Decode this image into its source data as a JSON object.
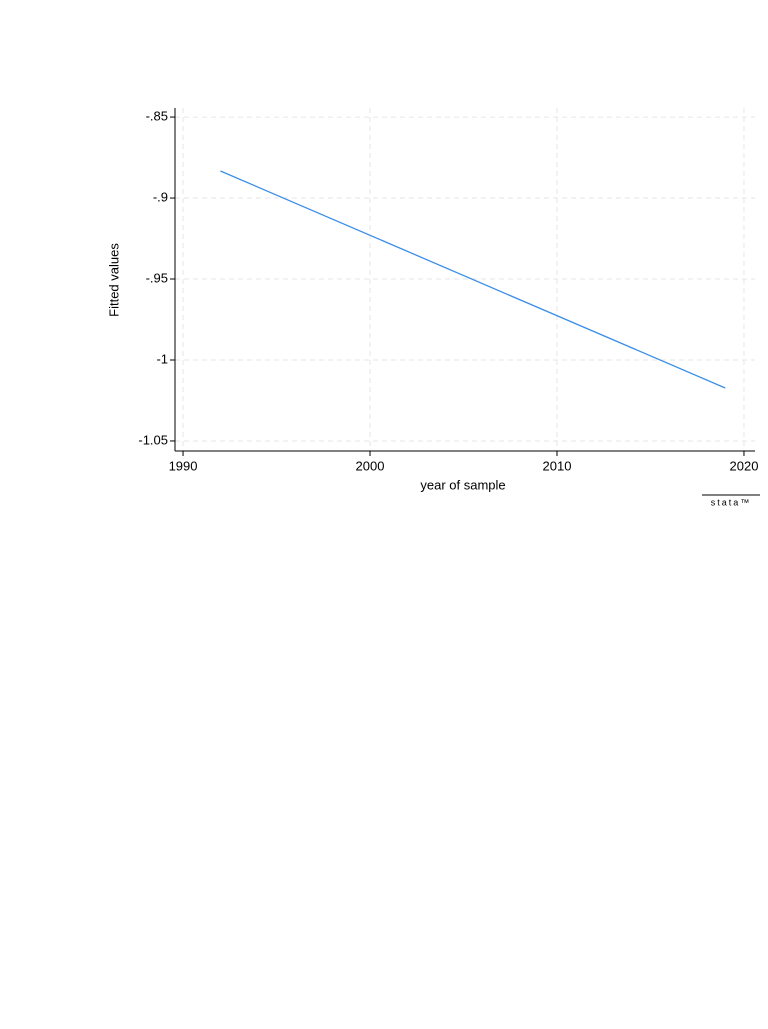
{
  "chart_data": {
    "type": "line",
    "x": [
      1992,
      2019
    ],
    "values": [
      -0.8833,
      -1.0173
    ],
    "color": "#3b8ee8",
    "xlabel": "year of sample",
    "ylabel": "Fitted values",
    "xlim": [
      1989.57,
      2020.59
    ],
    "ylim": [
      -1.0562,
      -0.8444
    ],
    "xticks": [
      1990,
      2000,
      2010,
      2020
    ],
    "yticks": [
      {
        "value": -0.85,
        "label": "-.85"
      },
      {
        "value": -0.9,
        "label": "-.9"
      },
      {
        "value": -0.95,
        "label": "-.95"
      },
      -1,
      {
        "value": -1.05,
        "label": "-1.05"
      }
    ],
    "grid": true,
    "logo": "stata™"
  }
}
